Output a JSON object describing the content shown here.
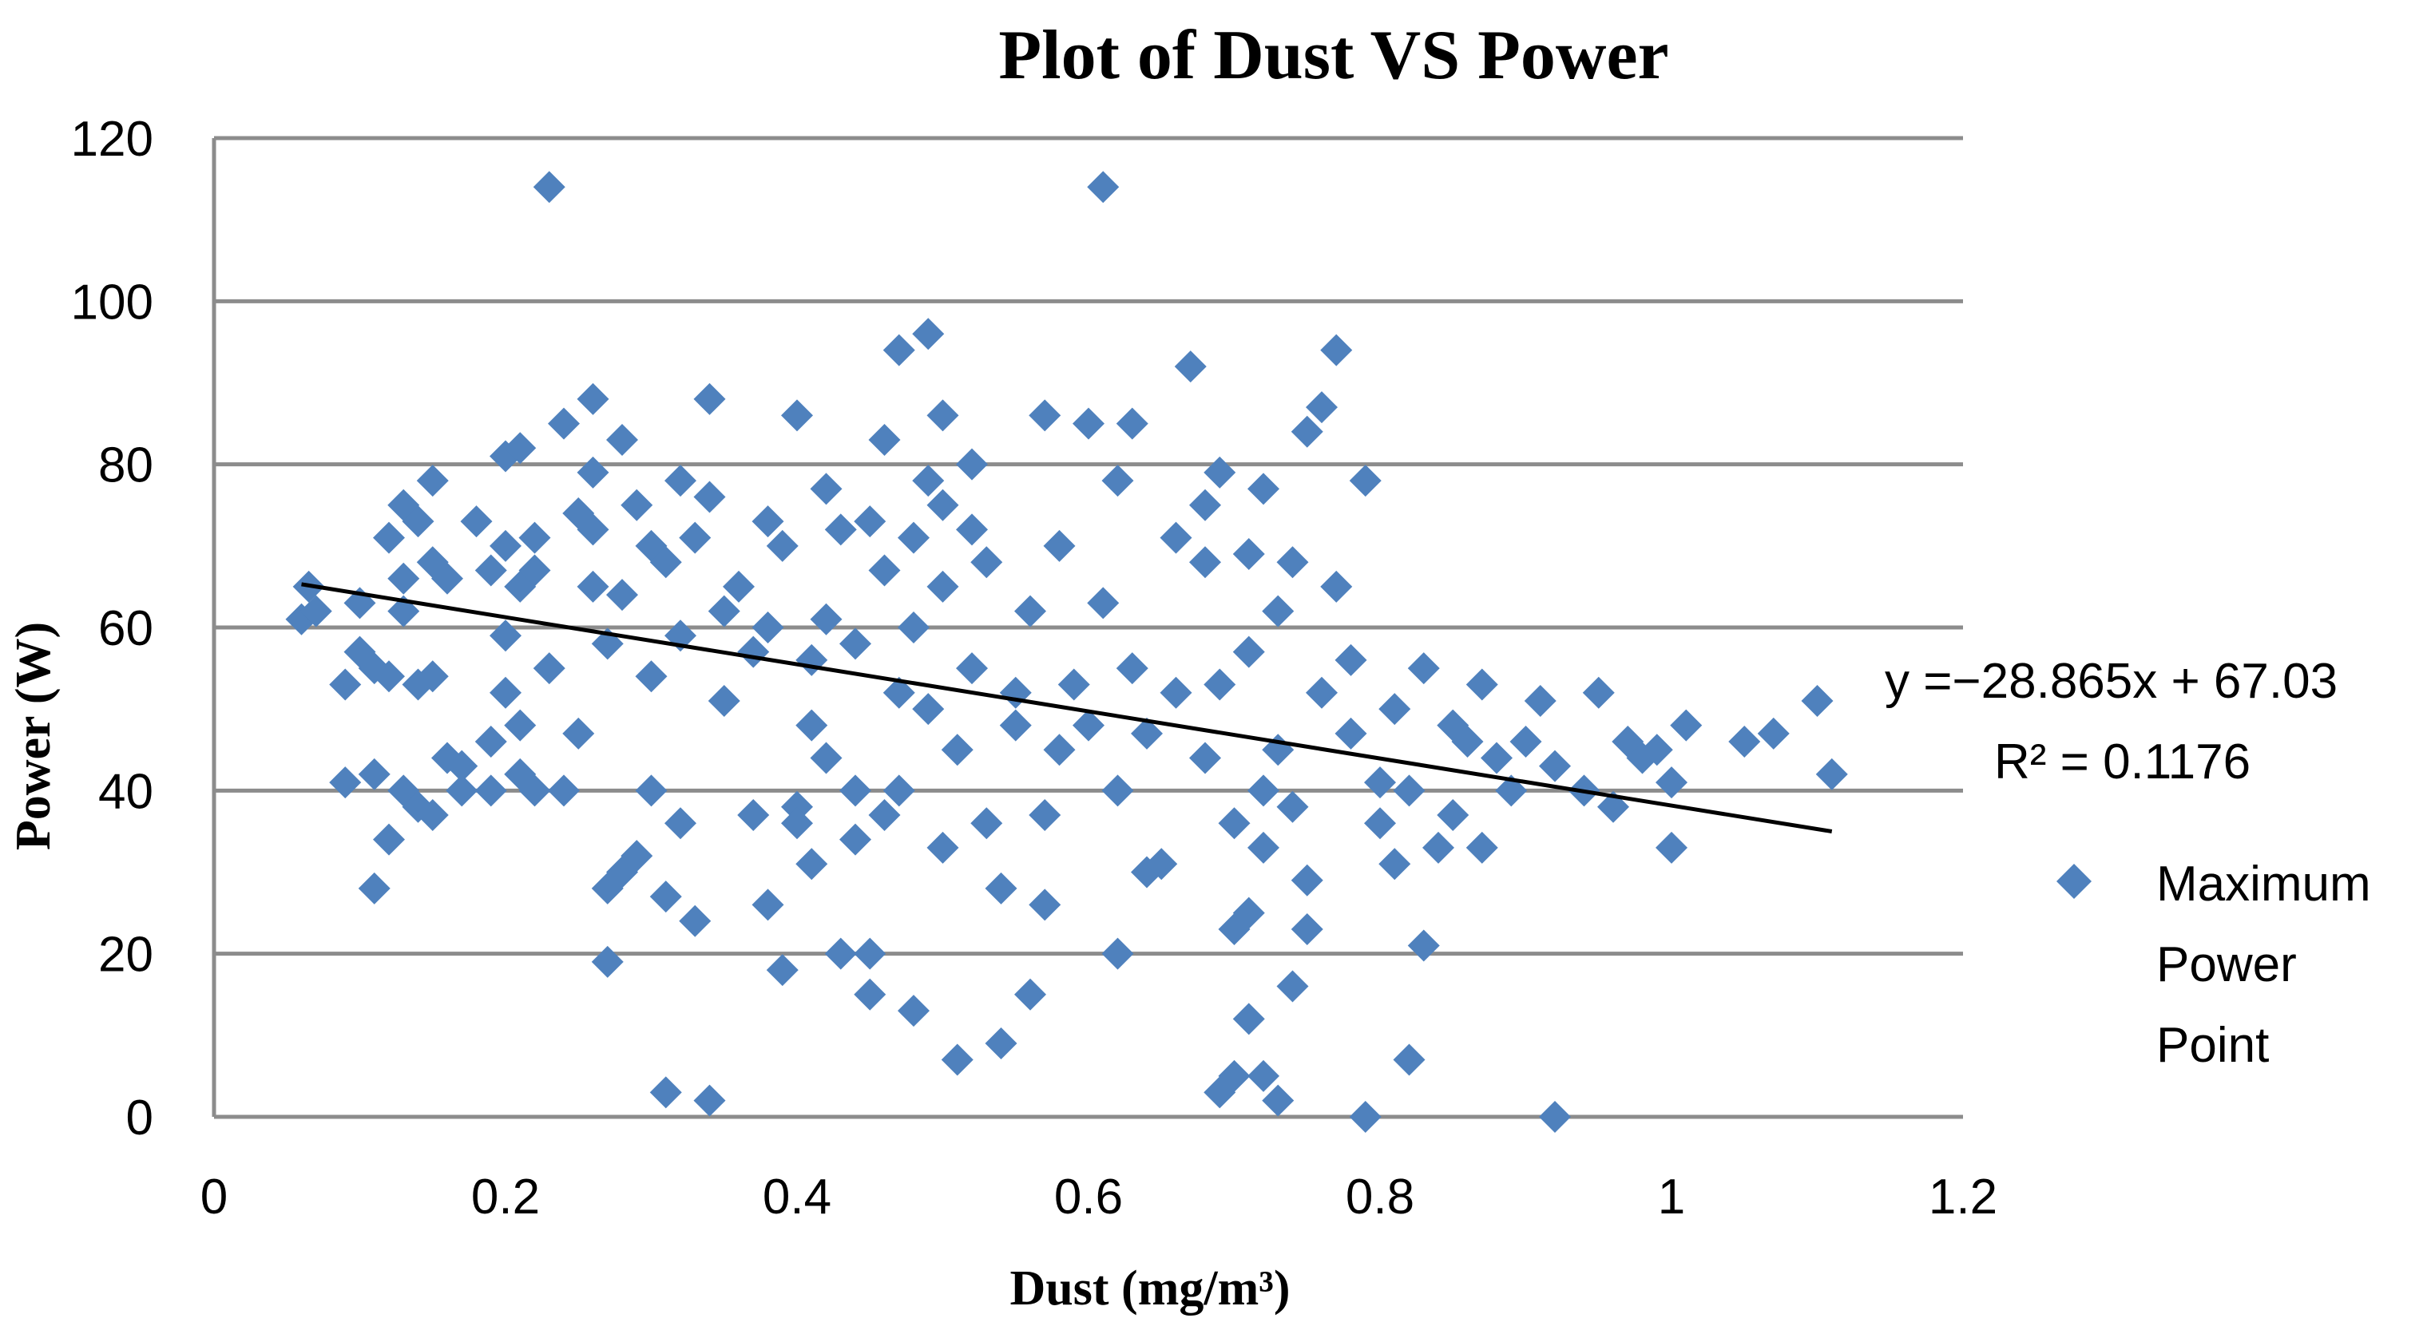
{
  "chart_data": {
    "type": "scatter",
    "title": "Plot of Dust VS Power",
    "xlabel": "Dust (mg/m³)",
    "ylabel": "Power (W)",
    "xlim": [
      0,
      1.2
    ],
    "ylim": [
      0,
      120
    ],
    "x_ticks": [
      "0",
      "0.2",
      "0.4",
      "0.6",
      "0.8",
      "1",
      "1.2"
    ],
    "y_ticks": [
      "0",
      "20",
      "40",
      "60",
      "80",
      "100",
      "120"
    ],
    "grid": true,
    "legend_position": "right",
    "series": [
      {
        "name": "Maximum Power Point",
        "legend_lines": [
          "Maximum",
          "Power",
          "Point"
        ],
        "color": "#4f81bd",
        "marker": "diamond",
        "points": [
          [
            0.06,
            61
          ],
          [
            0.065,
            65
          ],
          [
            0.07,
            62
          ],
          [
            0.09,
            41
          ],
          [
            0.09,
            53
          ],
          [
            0.1,
            63
          ],
          [
            0.1,
            57
          ],
          [
            0.11,
            28
          ],
          [
            0.11,
            55
          ],
          [
            0.11,
            42
          ],
          [
            0.12,
            34
          ],
          [
            0.12,
            71
          ],
          [
            0.12,
            54
          ],
          [
            0.13,
            75
          ],
          [
            0.13,
            62
          ],
          [
            0.13,
            66
          ],
          [
            0.13,
            40
          ],
          [
            0.14,
            38
          ],
          [
            0.14,
            53
          ],
          [
            0.14,
            73
          ],
          [
            0.15,
            78
          ],
          [
            0.15,
            54
          ],
          [
            0.15,
            68
          ],
          [
            0.15,
            37
          ],
          [
            0.16,
            66
          ],
          [
            0.16,
            44
          ],
          [
            0.17,
            40
          ],
          [
            0.17,
            43
          ],
          [
            0.18,
            73
          ],
          [
            0.19,
            67
          ],
          [
            0.19,
            46
          ],
          [
            0.19,
            40
          ],
          [
            0.2,
            59
          ],
          [
            0.2,
            52
          ],
          [
            0.2,
            70
          ],
          [
            0.2,
            81
          ],
          [
            0.21,
            82
          ],
          [
            0.21,
            65
          ],
          [
            0.21,
            48
          ],
          [
            0.21,
            42
          ],
          [
            0.22,
            71
          ],
          [
            0.22,
            67
          ],
          [
            0.22,
            40
          ],
          [
            0.23,
            114
          ],
          [
            0.23,
            55
          ],
          [
            0.24,
            40
          ],
          [
            0.24,
            85
          ],
          [
            0.25,
            74
          ],
          [
            0.25,
            47
          ],
          [
            0.26,
            88
          ],
          [
            0.26,
            79
          ],
          [
            0.26,
            72
          ],
          [
            0.26,
            65
          ],
          [
            0.27,
            58
          ],
          [
            0.27,
            28
          ],
          [
            0.27,
            19
          ],
          [
            0.28,
            83
          ],
          [
            0.28,
            64
          ],
          [
            0.28,
            30
          ],
          [
            0.29,
            75
          ],
          [
            0.29,
            32
          ],
          [
            0.3,
            54
          ],
          [
            0.3,
            40
          ],
          [
            0.3,
            70
          ],
          [
            0.31,
            68
          ],
          [
            0.31,
            3
          ],
          [
            0.31,
            27
          ],
          [
            0.32,
            78
          ],
          [
            0.32,
            59
          ],
          [
            0.32,
            36
          ],
          [
            0.33,
            71
          ],
          [
            0.33,
            24
          ],
          [
            0.34,
            88
          ],
          [
            0.34,
            76
          ],
          [
            0.34,
            2
          ],
          [
            0.35,
            51
          ],
          [
            0.35,
            62
          ],
          [
            0.36,
            65
          ],
          [
            0.37,
            37
          ],
          [
            0.37,
            57
          ],
          [
            0.38,
            73
          ],
          [
            0.38,
            60
          ],
          [
            0.38,
            26
          ],
          [
            0.39,
            18
          ],
          [
            0.39,
            70
          ],
          [
            0.4,
            38
          ],
          [
            0.4,
            36
          ],
          [
            0.4,
            86
          ],
          [
            0.41,
            56
          ],
          [
            0.41,
            48
          ],
          [
            0.41,
            31
          ],
          [
            0.42,
            77
          ],
          [
            0.42,
            61
          ],
          [
            0.42,
            44
          ],
          [
            0.43,
            20
          ],
          [
            0.43,
            72
          ],
          [
            0.44,
            34
          ],
          [
            0.44,
            40
          ],
          [
            0.44,
            58
          ],
          [
            0.45,
            73
          ],
          [
            0.45,
            15
          ],
          [
            0.45,
            20
          ],
          [
            0.46,
            83
          ],
          [
            0.46,
            67
          ],
          [
            0.46,
            37
          ],
          [
            0.47,
            94
          ],
          [
            0.47,
            40
          ],
          [
            0.47,
            52
          ],
          [
            0.48,
            60
          ],
          [
            0.48,
            71
          ],
          [
            0.48,
            13
          ],
          [
            0.49,
            96
          ],
          [
            0.49,
            78
          ],
          [
            0.49,
            50
          ],
          [
            0.5,
            86
          ],
          [
            0.5,
            75
          ],
          [
            0.5,
            65
          ],
          [
            0.5,
            33
          ],
          [
            0.51,
            7
          ],
          [
            0.51,
            45
          ],
          [
            0.52,
            80
          ],
          [
            0.52,
            72
          ],
          [
            0.52,
            55
          ],
          [
            0.53,
            68
          ],
          [
            0.53,
            36
          ],
          [
            0.54,
            28
          ],
          [
            0.54,
            9
          ],
          [
            0.55,
            52
          ],
          [
            0.55,
            48
          ],
          [
            0.56,
            62
          ],
          [
            0.56,
            15
          ],
          [
            0.57,
            86
          ],
          [
            0.57,
            37
          ],
          [
            0.57,
            26
          ],
          [
            0.58,
            70
          ],
          [
            0.58,
            45
          ],
          [
            0.59,
            53
          ],
          [
            0.6,
            85
          ],
          [
            0.6,
            48
          ],
          [
            0.61,
            114
          ],
          [
            0.61,
            63
          ],
          [
            0.62,
            78
          ],
          [
            0.62,
            40
          ],
          [
            0.62,
            20
          ],
          [
            0.63,
            85
          ],
          [
            0.63,
            55
          ],
          [
            0.64,
            47
          ],
          [
            0.64,
            30
          ],
          [
            0.65,
            31
          ],
          [
            0.66,
            71
          ],
          [
            0.66,
            52
          ],
          [
            0.67,
            92
          ],
          [
            0.68,
            75
          ],
          [
            0.68,
            44
          ],
          [
            0.68,
            68
          ],
          [
            0.69,
            79
          ],
          [
            0.69,
            53
          ],
          [
            0.69,
            3
          ],
          [
            0.7,
            23
          ],
          [
            0.7,
            5
          ],
          [
            0.7,
            36
          ],
          [
            0.71,
            69
          ],
          [
            0.71,
            57
          ],
          [
            0.71,
            25
          ],
          [
            0.71,
            12
          ],
          [
            0.72,
            77
          ],
          [
            0.72,
            40
          ],
          [
            0.72,
            33
          ],
          [
            0.72,
            5
          ],
          [
            0.73,
            62
          ],
          [
            0.73,
            2
          ],
          [
            0.73,
            45
          ],
          [
            0.74,
            68
          ],
          [
            0.74,
            16
          ],
          [
            0.74,
            38
          ],
          [
            0.75,
            84
          ],
          [
            0.75,
            23
          ],
          [
            0.75,
            29
          ],
          [
            0.76,
            87
          ],
          [
            0.76,
            52
          ],
          [
            0.77,
            65
          ],
          [
            0.77,
            94
          ],
          [
            0.78,
            56
          ],
          [
            0.78,
            47
          ],
          [
            0.79,
            78
          ],
          [
            0.79,
            0
          ],
          [
            0.8,
            41
          ],
          [
            0.8,
            36
          ],
          [
            0.81,
            50
          ],
          [
            0.81,
            31
          ],
          [
            0.82,
            7
          ],
          [
            0.82,
            40
          ],
          [
            0.83,
            55
          ],
          [
            0.83,
            21
          ],
          [
            0.84,
            33
          ],
          [
            0.85,
            48
          ],
          [
            0.85,
            37
          ],
          [
            0.86,
            46
          ],
          [
            0.87,
            53
          ],
          [
            0.87,
            33
          ],
          [
            0.88,
            44
          ],
          [
            0.89,
            40
          ],
          [
            0.9,
            46
          ],
          [
            0.91,
            51
          ],
          [
            0.92,
            43
          ],
          [
            0.92,
            0
          ],
          [
            0.94,
            40
          ],
          [
            0.95,
            52
          ],
          [
            0.96,
            38
          ],
          [
            0.97,
            46
          ],
          [
            0.98,
            44
          ],
          [
            0.99,
            45
          ],
          [
            1.0,
            33
          ],
          [
            1.0,
            41
          ],
          [
            1.01,
            48
          ],
          [
            1.05,
            46
          ],
          [
            1.07,
            47
          ],
          [
            1.1,
            51
          ],
          [
            1.11,
            42
          ]
        ]
      }
    ],
    "trendline": {
      "slope": -28.865,
      "intercept": 67.03,
      "x_range": [
        0.06,
        1.11
      ],
      "equation": "y =−28.865x + 67.03",
      "r_squared": "R² = 0.1176"
    }
  }
}
